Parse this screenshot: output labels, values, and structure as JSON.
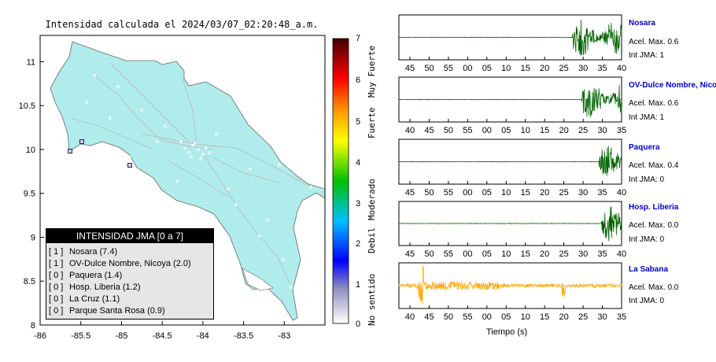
{
  "map": {
    "title": "Intensidad calculada el 2024/03/07_02:20:48_a.m.",
    "x_ticks": [
      "-86",
      "-85.5",
      "-85",
      "-84.5",
      "-84",
      "-83.5",
      "-83"
    ],
    "y_ticks": [
      "11",
      "10.5",
      "10",
      "9.5",
      "9",
      "8.5",
      "8"
    ],
    "land_color": "#b0ecec",
    "legend": {
      "header": "INTENSIDAD JMA [0 a 7]",
      "items": [
        {
          "level": "[ 1 ]",
          "text": "Nosara (7.4)"
        },
        {
          "level": "[ 1 ]",
          "text": "OV-Dulce Nombre, Nicoya (2.0)"
        },
        {
          "level": "[ 0 ]",
          "text": "Paquera (1.4)"
        },
        {
          "level": "[ 0 ]",
          "text": "Hosp. Liberia (1.2)"
        },
        {
          "level": "[ 0 ]",
          "text": "La Cruz (1.1)"
        },
        {
          "level": "[ 0 ]",
          "text": "Parque Santa Rosa (0.9)"
        }
      ]
    }
  },
  "colorbar": {
    "ticks": [
      "7",
      "6",
      "5",
      "4",
      "3",
      "2",
      "1",
      "0"
    ],
    "categories": [
      "Muy Fuerte",
      "Fuerte",
      "Moderado",
      "Debil",
      "No sentido"
    ]
  },
  "stations": [
    {
      "name": "Nosara",
      "accel": "Acel. Max. 0.6",
      "int": "Int JMA: 1",
      "color": "#006400",
      "ticks": [
        "45",
        "50",
        "55",
        "00",
        "05",
        "10",
        "15",
        "20",
        "25",
        "30",
        "35",
        "40"
      ],
      "burst_start": 0.78,
      "amp": 0.85
    },
    {
      "name": "OV-Dulce Nombre, Nicoya",
      "accel": "Acel. Max. 0.6",
      "int": "Int JMA: 1",
      "color": "#006400",
      "ticks": [
        "40",
        "45",
        "50",
        "55",
        "00",
        "05",
        "10",
        "15",
        "20",
        "25",
        "30",
        "35"
      ],
      "burst_start": 0.82,
      "amp": 0.85
    },
    {
      "name": "Paquera",
      "accel": "Acel. Max. 0.4",
      "int": "Int JMA: 0",
      "color": "#006400",
      "ticks": [
        "45",
        "50",
        "55",
        "00",
        "05",
        "10",
        "15",
        "20",
        "25",
        "30",
        "35",
        "40"
      ],
      "burst_start": 0.9,
      "amp": 0.75
    },
    {
      "name": "Hosp. Liberia",
      "accel": "Acel. Max. 0.0",
      "int": "Int JMA: 0",
      "color": "#006400",
      "ticks": [
        "45",
        "50",
        "55",
        "00",
        "05",
        "10",
        "15",
        "20",
        "25",
        "30",
        "35",
        "40"
      ],
      "burst_start": 0.91,
      "amp": 0.85
    },
    {
      "name": "La Sabana",
      "accel": "Acel. Max. 0.0",
      "int": "Int JMA: 0",
      "color": "#ffa500",
      "ticks": [
        "40",
        "45",
        "50",
        "55",
        "00",
        "05",
        "10",
        "15",
        "20",
        "25",
        "30",
        "35"
      ],
      "burst_start": 0.0,
      "amp": 0.2
    }
  ],
  "time_label": "Tiempo (s)",
  "chart_data": [
    {
      "type": "heatmap",
      "title": "Intensidad calculada el 2024/03/07_02:20:48_a.m.",
      "xlabel": "",
      "ylabel": "",
      "xlim": [
        -86,
        -82.5
      ],
      "ylim": [
        8,
        11.3
      ],
      "colorbar_range": [
        0,
        7
      ],
      "legend": "bottom-left"
    },
    {
      "type": "line",
      "series": [
        {
          "name": "Nosara",
          "peak": 0.6
        },
        {
          "name": "OV-Dulce Nombre, Nicoya",
          "peak": 0.6
        },
        {
          "name": "Paquera",
          "peak": 0.4
        },
        {
          "name": "Hosp. Liberia",
          "peak": 0.0
        },
        {
          "name": "La Sabana",
          "peak": 0.0
        }
      ],
      "xlabel": "Tiempo (s)"
    }
  ]
}
